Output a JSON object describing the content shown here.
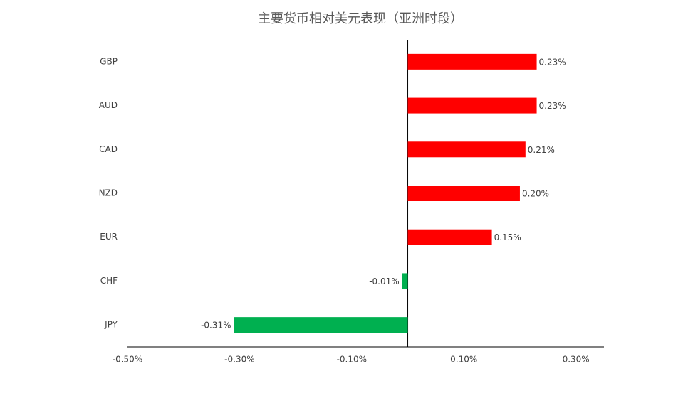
{
  "chart_data": {
    "type": "hbar",
    "title": "主要货币相对美元表现（亚洲时段）",
    "categories": [
      "GBP",
      "AUD",
      "CAD",
      "NZD",
      "EUR",
      "CHF",
      "JPY"
    ],
    "values": [
      0.23,
      0.23,
      0.21,
      0.2,
      0.15,
      -0.01,
      -0.31
    ],
    "value_labels": [
      "0.23%",
      "0.23%",
      "0.21%",
      "0.20%",
      "0.15%",
      "-0.01%",
      "-0.31%"
    ],
    "colors": [
      "#ff0000",
      "#ff0000",
      "#ff0000",
      "#ff0000",
      "#ff0000",
      "#00b050",
      "#00b050"
    ],
    "xlim": [
      -0.5,
      0.35
    ],
    "xticks": [
      {
        "value": -0.5,
        "label": "-0.50%"
      },
      {
        "value": -0.3,
        "label": "-0.30%"
      },
      {
        "value": -0.1,
        "label": "-0.10%"
      },
      {
        "value": 0.1,
        "label": "0.10%"
      },
      {
        "value": 0.3,
        "label": "0.30%"
      }
    ],
    "grid": false
  }
}
